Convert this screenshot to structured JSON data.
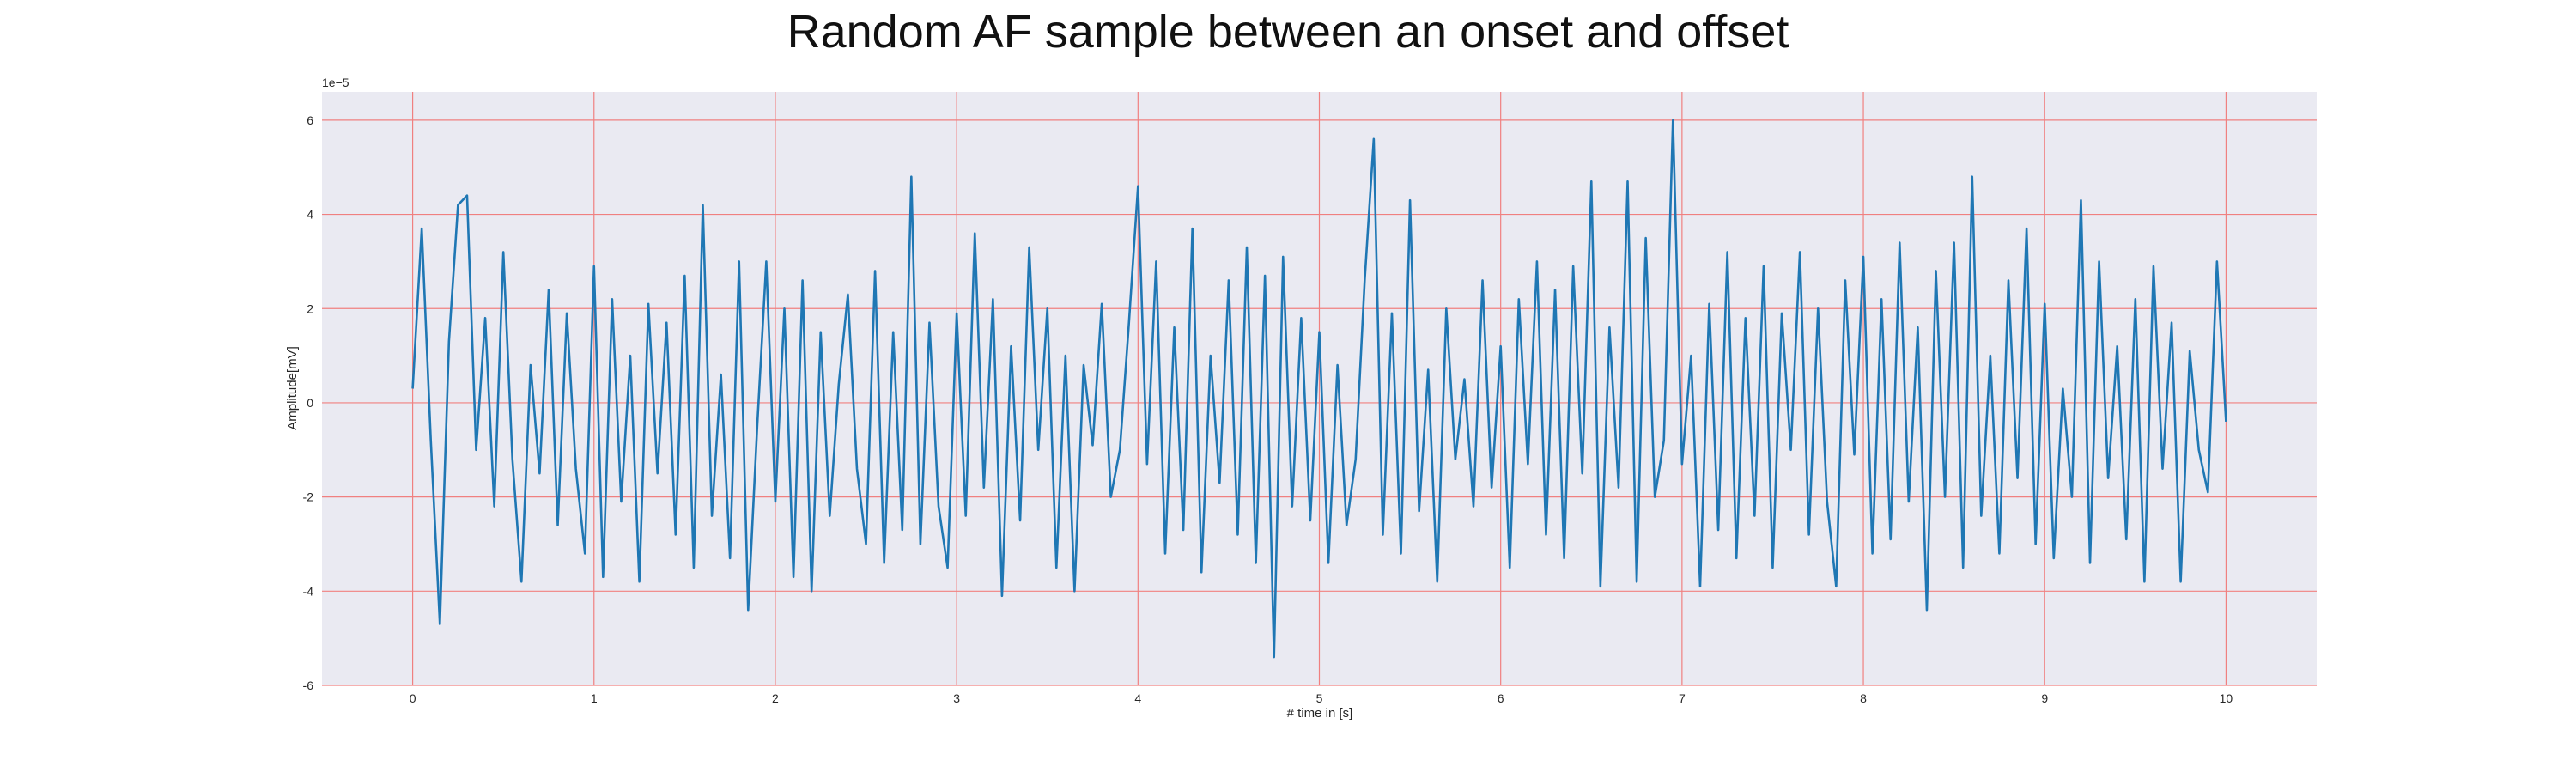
{
  "chart_data": {
    "type": "line",
    "title": "Random AF sample between an onset and offset",
    "xlabel": "# time in [s]",
    "ylabel": "Amplitude[mV]",
    "y_offset_label": "1e−5",
    "color": "#1f77b4",
    "grid": true,
    "xlim": [
      -0.5,
      10.5
    ],
    "ylim": [
      -6,
      6.6
    ],
    "xticks": [
      0,
      1,
      2,
      3,
      4,
      5,
      6,
      7,
      8,
      9,
      10
    ],
    "yticks": [
      -6,
      -4,
      -2,
      0,
      2,
      4,
      6
    ],
    "x": [
      0,
      0.05,
      0.1,
      0.15,
      0.2,
      0.25,
      0.3,
      0.35,
      0.4,
      0.45,
      0.5,
      0.55,
      0.6,
      0.65,
      0.7,
      0.75,
      0.8,
      0.85,
      0.9,
      0.95,
      1,
      1.05,
      1.1,
      1.15,
      1.2,
      1.25,
      1.3,
      1.35,
      1.4,
      1.45,
      1.5,
      1.55,
      1.6,
      1.65,
      1.7,
      1.75,
      1.8,
      1.85,
      1.9,
      1.95,
      2,
      2.05,
      2.1,
      2.15,
      2.2,
      2.25,
      2.3,
      2.35,
      2.4,
      2.45,
      2.5,
      2.55,
      2.6,
      2.65,
      2.7,
      2.75,
      2.8,
      2.85,
      2.9,
      2.95,
      3,
      3.05,
      3.1,
      3.15,
      3.2,
      3.25,
      3.3,
      3.35,
      3.4,
      3.45,
      3.5,
      3.55,
      3.6,
      3.65,
      3.7,
      3.75,
      3.8,
      3.85,
      3.9,
      3.95,
      4,
      4.05,
      4.1,
      4.15,
      4.2,
      4.25,
      4.3,
      4.35,
      4.4,
      4.45,
      4.5,
      4.55,
      4.6,
      4.65,
      4.7,
      4.75,
      4.8,
      4.85,
      4.9,
      4.95,
      5,
      5.05,
      5.1,
      5.15,
      5.2,
      5.25,
      5.3,
      5.35,
      5.4,
      5.45,
      5.5,
      5.55,
      5.6,
      5.65,
      5.7,
      5.75,
      5.8,
      5.85,
      5.9,
      5.95,
      6,
      6.05,
      6.1,
      6.15,
      6.2,
      6.25,
      6.3,
      6.35,
      6.4,
      6.45,
      6.5,
      6.55,
      6.6,
      6.65,
      6.7,
      6.75,
      6.8,
      6.85,
      6.9,
      6.95,
      7,
      7.05,
      7.1,
      7.15,
      7.2,
      7.25,
      7.3,
      7.35,
      7.4,
      7.45,
      7.5,
      7.55,
      7.6,
      7.65,
      7.7,
      7.75,
      7.8,
      7.85,
      7.9,
      7.95,
      8,
      8.05,
      8.1,
      8.15,
      8.2,
      8.25,
      8.3,
      8.35,
      8.4,
      8.45,
      8.5,
      8.55,
      8.6,
      8.65,
      8.7,
      8.75,
      8.8,
      8.85,
      8.9,
      8.95,
      9,
      9.05,
      9.1,
      9.15,
      9.2,
      9.25,
      9.3,
      9.35,
      9.4,
      9.45,
      9.5,
      9.55,
      9.6,
      9.65,
      9.7,
      9.75,
      9.8,
      9.85,
      9.9,
      9.95,
      10
    ],
    "values": [
      0.3,
      3.7,
      -0.8,
      -4.7,
      1.3,
      4.2,
      4.4,
      -1.0,
      1.8,
      -2.2,
      3.2,
      -1.2,
      -3.8,
      0.8,
      -1.5,
      2.4,
      -2.6,
      1.9,
      -1.4,
      -3.2,
      2.9,
      -3.7,
      2.2,
      -2.1,
      1.0,
      -3.8,
      2.1,
      -1.5,
      1.7,
      -2.8,
      2.7,
      -3.5,
      4.2,
      -2.4,
      0.6,
      -3.3,
      3.0,
      -4.4,
      -0.5,
      3.0,
      -2.1,
      2.0,
      -3.7,
      2.6,
      -4.0,
      1.5,
      -2.4,
      0.4,
      2.3,
      -1.4,
      -3.0,
      2.8,
      -3.4,
      1.5,
      -2.7,
      4.8,
      -3.0,
      1.7,
      -2.2,
      -3.5,
      1.9,
      -2.4,
      3.6,
      -1.8,
      2.2,
      -4.1,
      1.2,
      -2.5,
      3.3,
      -1.0,
      2.0,
      -3.5,
      1.0,
      -4.0,
      0.8,
      -0.9,
      2.1,
      -2.0,
      -1.0,
      1.7,
      4.6,
      -1.3,
      3.0,
      -3.2,
      1.6,
      -2.7,
      3.7,
      -3.6,
      1.0,
      -1.7,
      2.6,
      -2.8,
      3.3,
      -3.4,
      2.7,
      -5.4,
      3.1,
      -2.2,
      1.8,
      -2.5,
      1.5,
      -3.4,
      0.8,
      -2.6,
      -1.2,
      2.6,
      5.6,
      -2.8,
      1.9,
      -3.2,
      4.3,
      -2.3,
      0.7,
      -3.8,
      2.0,
      -1.2,
      0.5,
      -2.2,
      2.6,
      -1.8,
      1.2,
      -3.5,
      2.2,
      -1.3,
      3.0,
      -2.8,
      2.4,
      -3.3,
      2.9,
      -1.5,
      4.7,
      -3.9,
      1.6,
      -1.8,
      4.7,
      -3.8,
      3.5,
      -2.0,
      -0.8,
      6.0,
      -1.3,
      1.0,
      -3.9,
      2.1,
      -2.7,
      3.2,
      -3.3,
      1.8,
      -2.4,
      2.9,
      -3.5,
      1.9,
      -1.0,
      3.2,
      -2.8,
      2.0,
      -2.1,
      -3.9,
      2.6,
      -1.1,
      3.1,
      -3.2,
      2.2,
      -2.9,
      3.4,
      -2.1,
      1.6,
      -4.4,
      2.8,
      -2.0,
      3.4,
      -3.5,
      4.8,
      -2.4,
      1.0,
      -3.2,
      2.6,
      -1.6,
      3.7,
      -3.0,
      2.1,
      -3.3,
      0.3,
      -2.0,
      4.3,
      -3.4,
      3.0,
      -1.6,
      1.2,
      -2.9,
      2.2,
      -3.8,
      2.9,
      -1.4,
      1.7,
      -3.8,
      1.1,
      -1.0,
      -1.9,
      3.0,
      -0.4
    ]
  }
}
